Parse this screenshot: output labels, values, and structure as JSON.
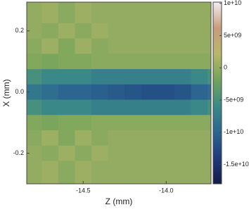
{
  "chart_data": {
    "type": "heatmap",
    "xlabel": "Z (mm)",
    "ylabel": "X (mm)",
    "x": [
      -14.8,
      -14.7,
      -14.6,
      -14.5,
      -14.4,
      -14.3,
      -14.2,
      -14.1,
      -14.0,
      -13.9,
      -13.8,
      -13.7
    ],
    "y": [
      0.25,
      0.2,
      0.15,
      0.1,
      0.05,
      0,
      -0.05,
      -0.1,
      -0.15,
      -0.2,
      -0.25
    ],
    "values": [
      [
        0,
        500000000.0,
        -500000000.0,
        500000000.0,
        0,
        0,
        0,
        0,
        0,
        0,
        0,
        0
      ],
      [
        0,
        -500000000.0,
        500000000.0,
        -500000000.0,
        500000000.0,
        0,
        0,
        0,
        0,
        0,
        0,
        0
      ],
      [
        -500000000.0,
        500000000.0,
        -1000000000.0,
        500000000.0,
        -500000000.0,
        0,
        0,
        0,
        0,
        0,
        0,
        0
      ],
      [
        -1000000000.0,
        -1500000000.0,
        -1000000000.0,
        -1000000000.0,
        -500000000.0,
        -500000000.0,
        -500000000.0,
        -500000000.0,
        -500000000.0,
        -500000000.0,
        -500000000.0,
        -500000000.0
      ],
      [
        -5000000000.0,
        -6000000000.0,
        -6000000000.0,
        -6000000000.0,
        -7000000000.0,
        -7000000000.0,
        -7000000000.0,
        -7000000000.0,
        -7000000000.0,
        -7000000000.0,
        -6000000000.0,
        -5000000000.0
      ],
      [
        -8000000000.0,
        -9000000000.0,
        -10000000000.0,
        -10000000000.0,
        -10500000000.0,
        -11000000000.0,
        -11500000000.0,
        -12000000000.0,
        -12000000000.0,
        -11500000000.0,
        -10000000000.0,
        -9000000000.0
      ],
      [
        -5000000000.0,
        -6000000000.0,
        -6000000000.0,
        -6000000000.0,
        -7000000000.0,
        -7000000000.0,
        -7000000000.0,
        -7000000000.0,
        -7000000000.0,
        -7000000000.0,
        -6000000000.0,
        -5000000000.0
      ],
      [
        -1000000000.0,
        -1500000000.0,
        -1000000000.0,
        -1000000000.0,
        -500000000.0,
        -500000000.0,
        -500000000.0,
        -500000000.0,
        -500000000.0,
        -500000000.0,
        -500000000.0,
        -500000000.0
      ],
      [
        -500000000.0,
        500000000.0,
        -1000000000.0,
        500000000.0,
        -500000000.0,
        0,
        0,
        0,
        0,
        0,
        0,
        0
      ],
      [
        0,
        -500000000.0,
        500000000.0,
        -500000000.0,
        500000000.0,
        0,
        0,
        0,
        0,
        0,
        0,
        0
      ],
      [
        0,
        500000000.0,
        -500000000.0,
        500000000.0,
        0,
        0,
        0,
        0,
        0,
        0,
        0,
        0
      ]
    ],
    "xlim": [
      -14.84,
      -13.73
    ],
    "ylim": [
      -0.3,
      0.294
    ],
    "xticks": [
      -14.5,
      {
        "value": -14,
        "label": "-14.0"
      }
    ],
    "yticks": [
      0.2,
      {
        "value": 0,
        "label": "0.0"
      },
      -0.2
    ],
    "clim": [
      -18000000000.0,
      10200000000.0
    ],
    "cticks": [
      {
        "value": 10000000000.0,
        "label": "1e+10"
      },
      {
        "value": 5000000000.0,
        "label": "5e+09"
      },
      0,
      {
        "value": -5000000000.0,
        "label": "-5e+09"
      },
      {
        "value": -10000000000.0,
        "label": "-1e+10"
      },
      {
        "value": -15000000000.0,
        "label": "-1.5e+10"
      }
    ],
    "colorscale": [
      "#141a48",
      "#1f3a7c",
      "#2b6690",
      "#3a8a88",
      "#72a45a",
      "#b9b66a",
      "#c99c7c",
      "#f4eef2"
    ]
  }
}
